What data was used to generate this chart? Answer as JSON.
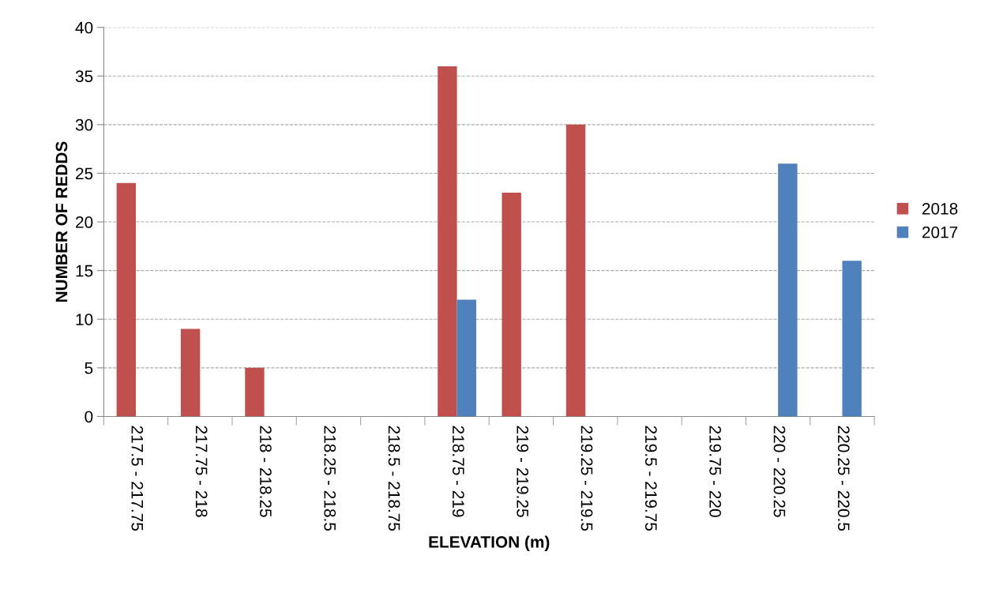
{
  "chart_data": {
    "type": "bar",
    "xlabel": "ELEVATION (m)",
    "ylabel": "NUMBER OF REDDS",
    "categories": [
      "217.5 - 217.75",
      "217.75 - 218",
      "218 - 218.25",
      "218.25 - 218.5",
      "218.5 - 218.75",
      "218.75 - 219",
      "219 - 219.25",
      "219.25 - 219.5",
      "219.5 - 219.75",
      "219.75 - 220",
      "220 - 220.25",
      "220.25 - 220.5"
    ],
    "series": [
      {
        "name": "2018",
        "color": "#c0504d",
        "values": [
          24,
          9,
          5,
          0,
          0,
          36,
          23,
          30,
          0,
          0,
          0,
          0
        ]
      },
      {
        "name": "2017",
        "color": "#4f81bd",
        "values": [
          0,
          0,
          0,
          0,
          0,
          12,
          0,
          0,
          0,
          0,
          26,
          16
        ]
      }
    ],
    "ylim": [
      0,
      40
    ],
    "yticks": [
      0,
      5,
      10,
      15,
      20,
      25,
      30,
      35,
      40
    ],
    "grid": "y",
    "legend": "right"
  }
}
